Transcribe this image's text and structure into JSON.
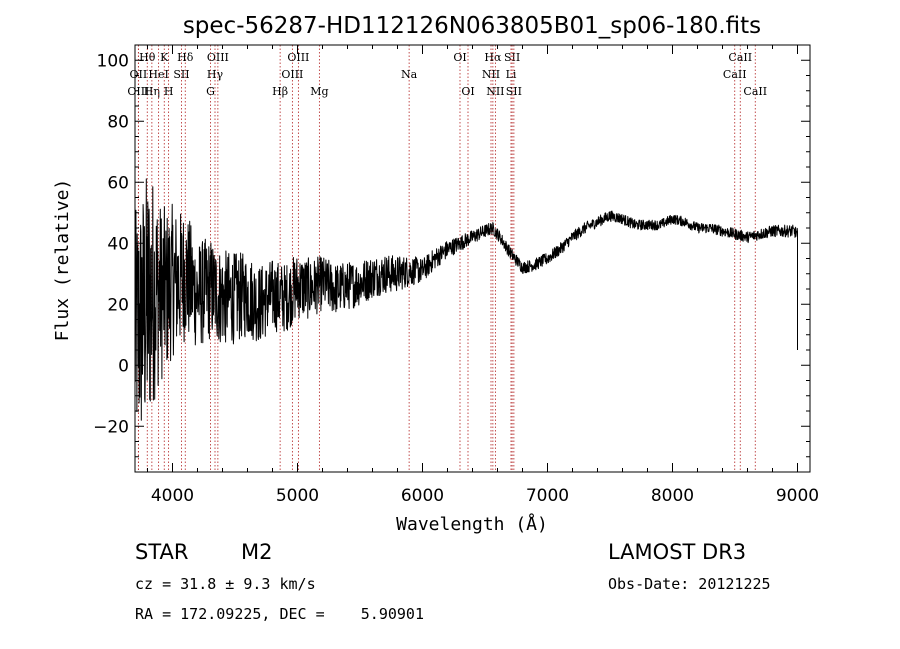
{
  "chart_data": {
    "type": "line",
    "title": "spec-56287-HD112126N063805B01_sp06-180.fits",
    "xlabel": "Wavelength (Å)",
    "ylabel": "Flux (relative)",
    "xlim": [
      3700,
      9100
    ],
    "ylim": [
      -35,
      105
    ],
    "xticks": [
      4000,
      5000,
      6000,
      7000,
      8000,
      9000
    ],
    "yticks": [
      -20,
      0,
      20,
      40,
      60,
      80,
      100
    ],
    "xtick_labels": [
      "4000",
      "5000",
      "6000",
      "7000",
      "8000",
      "9000"
    ],
    "ytick_labels": [
      "−20",
      "0",
      "20",
      "40",
      "60",
      "80",
      "100"
    ],
    "grid": false,
    "line_color": "#000000",
    "marker_color": "#b22222",
    "spectral_lines": [
      {
        "label": "Hθ",
        "wavelength": 3798,
        "row": 0
      },
      {
        "label": "OII",
        "wavelength": 3727,
        "row": 1
      },
      {
        "label": "OIII",
        "wavelength": 3727,
        "row": 2
      },
      {
        "label": "Hη",
        "wavelength": 3835,
        "row": 2
      },
      {
        "label": "HeI",
        "wavelength": 3889,
        "row": 1
      },
      {
        "label": "K",
        "wavelength": 3934,
        "row": 0
      },
      {
        "label": "SII",
        "wavelength": 4072,
        "row": 1
      },
      {
        "label": "H",
        "wavelength": 3969,
        "row": 2
      },
      {
        "label": "Hδ",
        "wavelength": 4102,
        "row": 0
      },
      {
        "label": "OIII",
        "wavelength": 4363,
        "row": 0
      },
      {
        "label": "Hγ",
        "wavelength": 4340,
        "row": 1
      },
      {
        "label": "G",
        "wavelength": 4304,
        "row": 2
      },
      {
        "label": "OIII",
        "wavelength": 5007,
        "row": 0
      },
      {
        "label": "OIII",
        "wavelength": 4959,
        "row": 1
      },
      {
        "label": "Hβ",
        "wavelength": 4861,
        "row": 2
      },
      {
        "label": "Mg",
        "wavelength": 5175,
        "row": 2
      },
      {
        "label": "Na",
        "wavelength": 5893,
        "row": 1
      },
      {
        "label": "OI",
        "wavelength": 6300,
        "row": 0
      },
      {
        "label": "OI",
        "wavelength": 6364,
        "row": 2
      },
      {
        "label": "Hα",
        "wavelength": 6563,
        "row": 0
      },
      {
        "label": "NII",
        "wavelength": 6548,
        "row": 1
      },
      {
        "label": "NII",
        "wavelength": 6583,
        "row": 2
      },
      {
        "label": "SII",
        "wavelength": 6717,
        "row": 0
      },
      {
        "label": "Li",
        "wavelength": 6708,
        "row": 1
      },
      {
        "label": "SII",
        "wavelength": 6731,
        "row": 2
      },
      {
        "label": "CaII",
        "wavelength": 8542,
        "row": 0
      },
      {
        "label": "CaII",
        "wavelength": 8498,
        "row": 1
      },
      {
        "label": "CaII",
        "wavelength": 8662,
        "row": 2
      }
    ],
    "series": [
      {
        "name": "flux",
        "anchors": [
          [
            3700,
            10
          ],
          [
            3750,
            15
          ],
          [
            3800,
            20
          ],
          [
            3850,
            25
          ],
          [
            3900,
            24
          ],
          [
            3950,
            24
          ],
          [
            4000,
            28
          ],
          [
            4050,
            27
          ],
          [
            4100,
            30
          ],
          [
            4200,
            23
          ],
          [
            4300,
            25
          ],
          [
            4400,
            22
          ],
          [
            4500,
            22
          ],
          [
            4600,
            23
          ],
          [
            4700,
            20
          ],
          [
            4800,
            23
          ],
          [
            4900,
            22
          ],
          [
            5000,
            26
          ],
          [
            5100,
            25
          ],
          [
            5200,
            27
          ],
          [
            5300,
            25
          ],
          [
            5400,
            26
          ],
          [
            5500,
            27
          ],
          [
            5600,
            29
          ],
          [
            5700,
            30
          ],
          [
            5800,
            30
          ],
          [
            5900,
            31
          ],
          [
            6000,
            31
          ],
          [
            6100,
            35
          ],
          [
            6200,
            38
          ],
          [
            6300,
            40
          ],
          [
            6400,
            42
          ],
          [
            6500,
            44
          ],
          [
            6560,
            45
          ],
          [
            6620,
            42
          ],
          [
            6700,
            37
          ],
          [
            6800,
            32
          ],
          [
            6900,
            33
          ],
          [
            7000,
            35
          ],
          [
            7100,
            38
          ],
          [
            7200,
            42
          ],
          [
            7300,
            45
          ],
          [
            7400,
            47
          ],
          [
            7500,
            49
          ],
          [
            7600,
            48
          ],
          [
            7700,
            46
          ],
          [
            7800,
            46
          ],
          [
            7900,
            46
          ],
          [
            8000,
            48
          ],
          [
            8100,
            47
          ],
          [
            8200,
            45
          ],
          [
            8300,
            45
          ],
          [
            8400,
            44
          ],
          [
            8500,
            43
          ],
          [
            8600,
            42
          ],
          [
            8700,
            43
          ],
          [
            8800,
            44
          ],
          [
            8900,
            44
          ],
          [
            8970,
            44
          ],
          [
            9000,
            43
          ]
        ],
        "noise": [
          [
            3700,
            40
          ],
          [
            3800,
            45
          ],
          [
            3900,
            30
          ],
          [
            4000,
            25
          ],
          [
            4100,
            22
          ],
          [
            4200,
            18
          ],
          [
            4400,
            16
          ],
          [
            4600,
            14
          ],
          [
            4800,
            12
          ],
          [
            5000,
            11
          ],
          [
            5200,
            9
          ],
          [
            5400,
            8
          ],
          [
            5600,
            7
          ],
          [
            5800,
            6
          ],
          [
            6000,
            4
          ],
          [
            6300,
            2.5
          ],
          [
            6600,
            2
          ],
          [
            7000,
            2
          ],
          [
            7500,
            1.8
          ],
          [
            8000,
            1.6
          ],
          [
            8500,
            1.8
          ],
          [
            9000,
            2
          ]
        ],
        "x_end": 9000,
        "end_drop": 5
      }
    ]
  },
  "info": {
    "object_type": "STAR",
    "subclass": "M2",
    "survey": "LAMOST DR3",
    "redshift": "cz = 31.8 ± 9.3 km/s",
    "obs_date": "Obs-Date: 20121225",
    "coordinates": "RA = 172.09225, DEC =    5.90901"
  }
}
